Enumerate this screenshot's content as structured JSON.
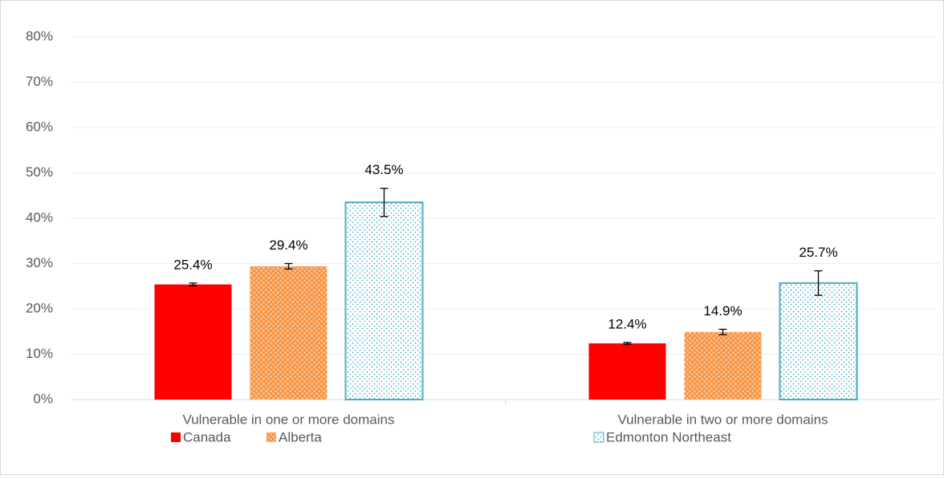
{
  "chart_data": {
    "type": "bar",
    "categories": [
      "Vulnerable in one or more domains",
      "Vulnerable in two or more domains"
    ],
    "series": [
      {
        "name": "Canada",
        "color": "#ff0000",
        "values": [
          25.4,
          12.4
        ],
        "value_labels": [
          "25.4%",
          "12.4%"
        ],
        "errors": [
          0.3,
          0.2
        ]
      },
      {
        "name": "Alberta",
        "color": "#f79646",
        "values": [
          29.4,
          14.9
        ],
        "value_labels": [
          "29.4%",
          "14.9%"
        ],
        "errors": [
          0.6,
          0.6
        ]
      },
      {
        "name": "Edmonton Northeast",
        "color": "#4bacc6",
        "values": [
          43.5,
          25.7
        ],
        "value_labels": [
          "43.5%",
          "25.7%"
        ],
        "errors": [
          3.1,
          2.7
        ]
      }
    ],
    "ylim": [
      0,
      80
    ],
    "yticks": [
      {
        "value": 0,
        "label": "0%"
      },
      {
        "value": 10,
        "label": "10%"
      },
      {
        "value": 20,
        "label": "20%"
      },
      {
        "value": 30,
        "label": "30%"
      },
      {
        "value": 40,
        "label": "40%"
      },
      {
        "value": 50,
        "label": "50%"
      },
      {
        "value": 60,
        "label": "60%"
      },
      {
        "value": 70,
        "label": "70%"
      },
      {
        "value": 80,
        "label": "80%"
      }
    ],
    "grid": true,
    "legend": "bottom"
  }
}
